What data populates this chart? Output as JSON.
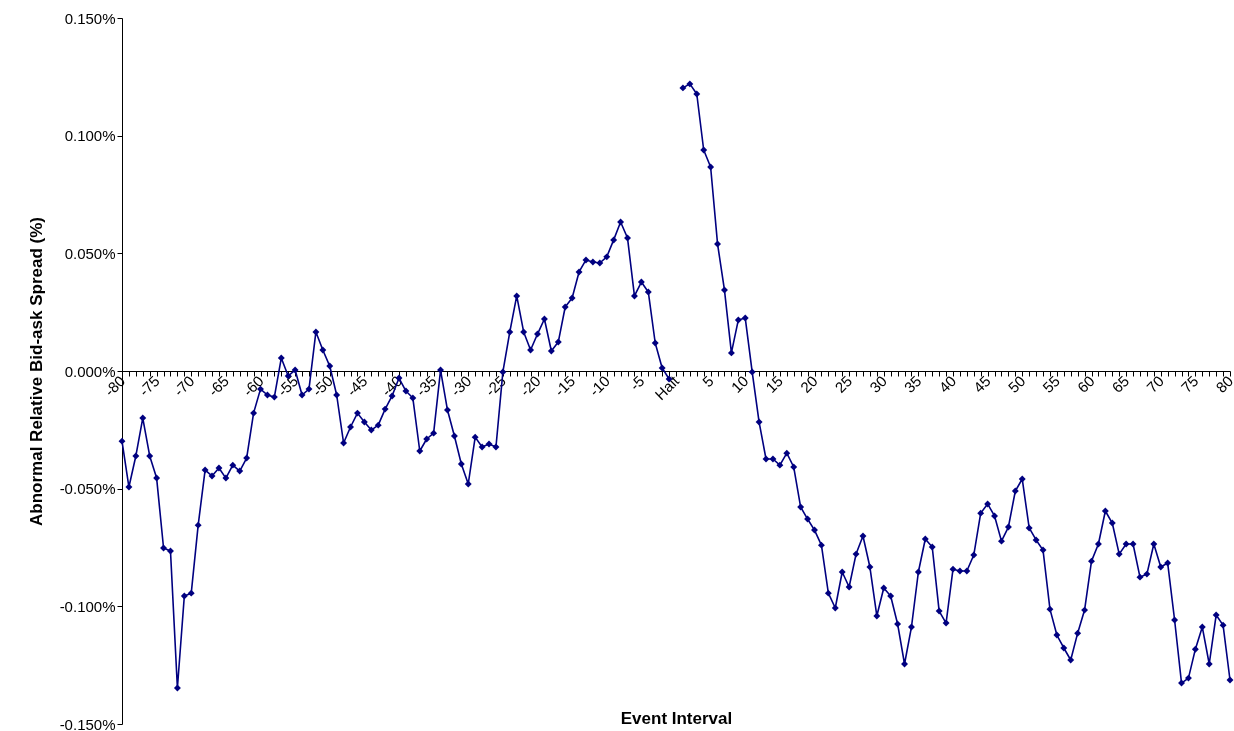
{
  "chart_data": {
    "type": "line",
    "xlabel": "Event Interval",
    "ylabel": "Abnormal Relative Bid-ask Spread (%)",
    "marker": "diamond",
    "line_style": "solid",
    "categories": [
      "-80",
      null,
      null,
      null,
      null,
      "-75",
      null,
      null,
      null,
      null,
      "-70",
      null,
      null,
      null,
      null,
      "-65",
      null,
      null,
      null,
      null,
      "-60",
      null,
      null,
      null,
      null,
      "-55",
      null,
      null,
      null,
      null,
      "-50",
      null,
      null,
      null,
      null,
      "-45",
      null,
      null,
      null,
      null,
      "-40",
      null,
      null,
      null,
      null,
      "-35",
      null,
      null,
      null,
      null,
      "-30",
      null,
      null,
      null,
      null,
      "-25",
      null,
      null,
      null,
      null,
      "-20",
      null,
      null,
      null,
      null,
      "-15",
      null,
      null,
      null,
      null,
      "-10",
      null,
      null,
      null,
      null,
      "-5",
      null,
      null,
      null,
      null,
      "Halt",
      null,
      null,
      null,
      null,
      "5",
      null,
      null,
      null,
      null,
      "10",
      null,
      null,
      null,
      null,
      "15",
      null,
      null,
      null,
      null,
      "20",
      null,
      null,
      null,
      null,
      "25",
      null,
      null,
      null,
      null,
      "30",
      null,
      null,
      null,
      null,
      "35",
      null,
      null,
      null,
      null,
      "40",
      null,
      null,
      null,
      null,
      "45",
      null,
      null,
      null,
      null,
      "50",
      null,
      null,
      null,
      null,
      "55",
      null,
      null,
      null,
      null,
      "60",
      null,
      null,
      null,
      null,
      "65",
      null,
      null,
      null,
      null,
      "70",
      null,
      null,
      null,
      null,
      "75",
      null,
      null,
      null,
      null,
      "80"
    ],
    "ylim": [
      -0.15,
      0.15
    ],
    "yticks": [
      {
        "value": -0.15,
        "label": "-0.150%"
      },
      {
        "value": -0.1,
        "label": "-0.100%"
      },
      {
        "value": -0.05,
        "label": "-0.050%"
      },
      {
        "value": 0,
        "label": "0.000%"
      },
      {
        "value": 0.05,
        "label": "0.050%"
      },
      {
        "value": 0.1,
        "label": "0.100%"
      },
      {
        "value": 0.15,
        "label": "0.150%"
      }
    ],
    "series": [
      {
        "color": "#000080",
        "values": [
          -0.0298,
          -0.0493,
          -0.0361,
          -0.02,
          -0.0361,
          -0.0455,
          -0.0752,
          -0.0765,
          -0.1347,
          -0.0956,
          -0.0944,
          -0.0655,
          -0.0421,
          -0.0446,
          -0.0412,
          -0.0455,
          -0.04,
          -0.0425,
          -0.037,
          -0.0179,
          -0.0077,
          -0.0102,
          -0.0111,
          0.0055,
          -0.0021,
          0.0004,
          -0.0102,
          -0.0077,
          0.0166,
          0.0089,
          0.0021,
          -0.0102,
          -0.0306,
          -0.0238,
          -0.0179,
          -0.0217,
          -0.0251,
          -0.023,
          -0.0162,
          -0.0106,
          -0.003,
          -0.0085,
          -0.0115,
          -0.034,
          -0.0289,
          -0.0264,
          0.0004,
          -0.0166,
          -0.0276,
          -0.0395,
          -0.048,
          -0.0281,
          -0.0323,
          -0.031,
          -0.0323,
          -0.0004,
          0.0166,
          0.0319,
          0.0166,
          0.0089,
          0.0157,
          0.0221,
          0.0085,
          0.0123,
          0.0272,
          0.031,
          0.0421,
          0.0472,
          0.0463,
          0.0459,
          0.0485,
          0.0557,
          0.0633,
          0.0565,
          0.0319,
          0.0378,
          0.0336,
          0.0119,
          0.0013,
          -0.0034,
          null,
          0.1203,
          0.122,
          0.1177,
          0.0939,
          0.0867,
          0.054,
          0.0344,
          0.0077,
          0.0217,
          0.0225,
          -0.0004,
          -0.0217,
          -0.0374,
          -0.0374,
          -0.04,
          -0.0349,
          -0.0408,
          -0.0578,
          -0.0629,
          -0.0676,
          -0.074,
          -0.0944,
          -0.1007,
          -0.0854,
          -0.0918,
          -0.0778,
          -0.0701,
          -0.0833,
          -0.1041,
          -0.0922,
          -0.0956,
          -0.1075,
          -0.1245,
          -0.1088,
          -0.0854,
          -0.0714,
          -0.0748,
          -0.102,
          -0.1071,
          -0.0842,
          -0.085,
          -0.085,
          -0.0782,
          -0.0604,
          -0.0565,
          -0.0616,
          -0.0723,
          -0.0663,
          -0.051,
          -0.0459,
          -0.0667,
          -0.0718,
          -0.0761,
          -0.1012,
          -0.1122,
          -0.1177,
          -0.1228,
          -0.1114,
          -0.1016,
          -0.0808,
          -0.0735,
          -0.0595,
          -0.0646,
          -0.0778,
          -0.0735,
          -0.0735,
          -0.0876,
          -0.0863,
          -0.0735,
          -0.0833,
          -0.0816,
          -0.1058,
          -0.1326,
          -0.1305,
          -0.1182,
          -0.1088,
          -0.1245,
          -0.1037,
          -0.108,
          -0.1313
        ]
      }
    ]
  }
}
